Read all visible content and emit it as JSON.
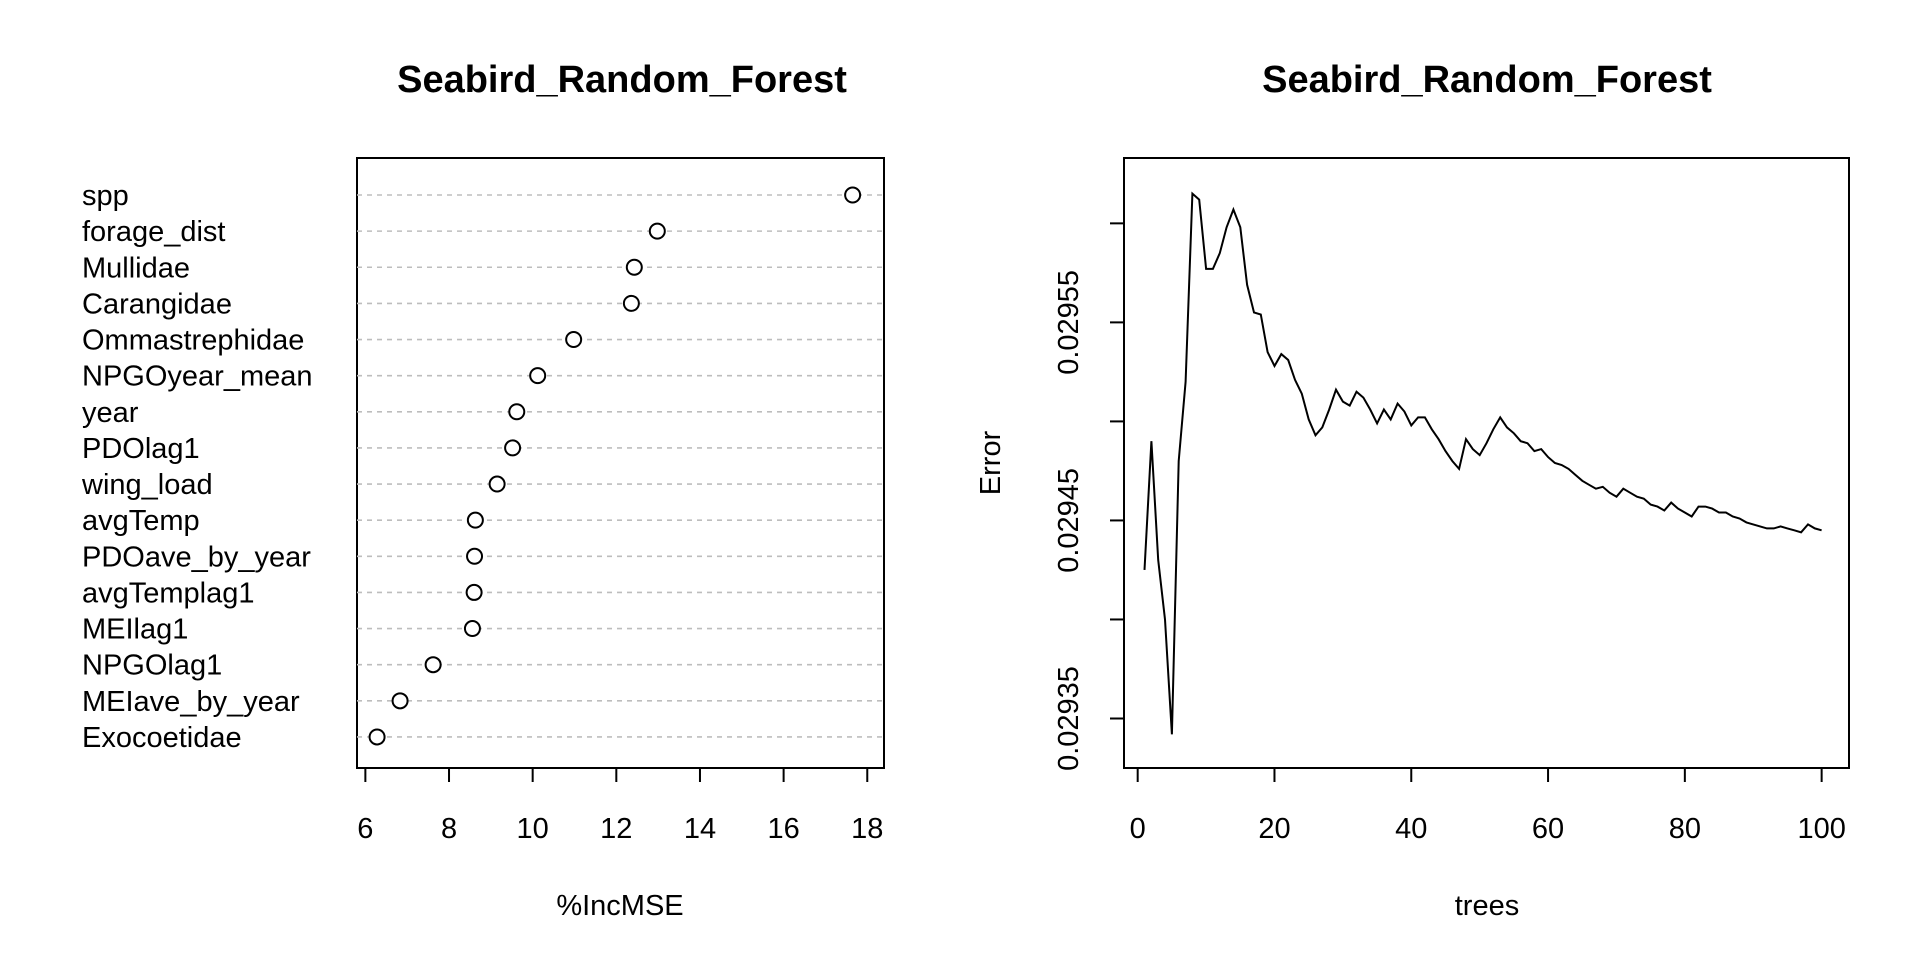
{
  "chart_data": [
    {
      "type": "dotchart",
      "title": "Seabird_Random_Forest",
      "xlabel": "%IncMSE",
      "ylabel": "",
      "xlim": [
        5.8,
        18.4
      ],
      "xticks": [
        6,
        8,
        10,
        12,
        14,
        16,
        18
      ],
      "grid": "dashed horizontal",
      "categories": [
        "spp",
        "forage_dist",
        "Mullidae",
        "Carangidae",
        "Ommastrephidae",
        "NPGOyear_mean",
        "year",
        "PDOlag1",
        "wing_load",
        "avgTemp",
        "PDOave_by_year",
        "avgTemplag1",
        "MEIlag1",
        "NPGOlag1",
        "MEIave_by_year",
        "Exocoetidae"
      ],
      "values": [
        17.65,
        12.98,
        12.43,
        12.36,
        10.98,
        10.12,
        9.62,
        9.52,
        9.15,
        8.63,
        8.61,
        8.6,
        8.56,
        7.62,
        6.83,
        6.28
      ]
    },
    {
      "type": "line",
      "title": "Seabird_Random_Forest",
      "xlabel": "trees",
      "ylabel": "Error",
      "xlim": [
        -2,
        104
      ],
      "ylim": [
        0.029325,
        0.029633
      ],
      "xticks": [
        0,
        20,
        40,
        60,
        80,
        100
      ],
      "yticks": [
        0.02935,
        0.0294,
        0.02945,
        0.0295,
        0.02955,
        0.0296
      ],
      "ytick_labels": [
        "0.02935",
        "",
        "0.02945",
        "",
        "0.02955",
        ""
      ],
      "x": [
        1,
        2,
        3,
        4,
        5,
        6,
        7,
        8,
        9,
        10,
        11,
        12,
        13,
        14,
        15,
        16,
        17,
        18,
        19,
        20,
        21,
        22,
        23,
        24,
        25,
        26,
        27,
        28,
        29,
        30,
        31,
        32,
        33,
        34,
        35,
        36,
        37,
        38,
        39,
        40,
        41,
        42,
        43,
        44,
        45,
        46,
        47,
        48,
        49,
        50,
        51,
        52,
        53,
        54,
        55,
        56,
        57,
        58,
        59,
        60,
        61,
        62,
        63,
        64,
        65,
        66,
        67,
        68,
        69,
        70,
        71,
        72,
        73,
        74,
        75,
        76,
        77,
        78,
        79,
        80,
        81,
        82,
        83,
        84,
        85,
        86,
        87,
        88,
        89,
        90,
        91,
        92,
        93,
        94,
        95,
        96,
        97,
        98,
        99,
        100
      ],
      "y": [
        0.029425,
        0.02949,
        0.02943,
        0.0294,
        0.029342,
        0.02948,
        0.02952,
        0.029615,
        0.029612,
        0.029577,
        0.029577,
        0.029585,
        0.029598,
        0.029607,
        0.029598,
        0.029569,
        0.029555,
        0.029554,
        0.029535,
        0.029528,
        0.029534,
        0.029531,
        0.029521,
        0.029514,
        0.029501,
        0.029493,
        0.029497,
        0.029506,
        0.029516,
        0.02951,
        0.029508,
        0.029515,
        0.029512,
        0.029506,
        0.029499,
        0.029506,
        0.029501,
        0.029509,
        0.029505,
        0.029498,
        0.029502,
        0.029502,
        0.029496,
        0.029491,
        0.029485,
        0.02948,
        0.029476,
        0.029491,
        0.029486,
        0.029483,
        0.029489,
        0.029496,
        0.029502,
        0.029497,
        0.029494,
        0.02949,
        0.029489,
        0.029485,
        0.029486,
        0.029482,
        0.029479,
        0.029478,
        0.029476,
        0.029473,
        0.02947,
        0.029468,
        0.029466,
        0.029467,
        0.029464,
        0.029462,
        0.029466,
        0.029464,
        0.029462,
        0.029461,
        0.029458,
        0.029457,
        0.029455,
        0.029459,
        0.029456,
        0.029454,
        0.029452,
        0.029457,
        0.029457,
        0.029456,
        0.029454,
        0.029454,
        0.029452,
        0.029451,
        0.029449,
        0.029448,
        0.029447,
        0.029446,
        0.029446,
        0.029447,
        0.029446,
        0.029445,
        0.029444,
        0.029448,
        0.029446,
        0.029445
      ]
    }
  ]
}
